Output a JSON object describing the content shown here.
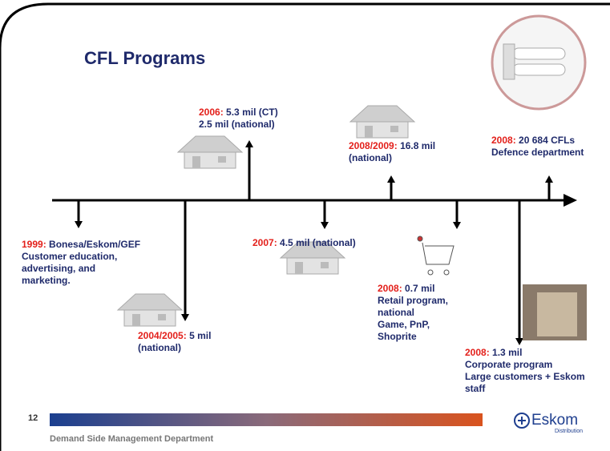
{
  "header": {
    "title": "CFL Programs"
  },
  "events": [
    {
      "year": "1999:",
      "lines": [
        "Bonesa/Eskom/GEF",
        "Customer education,",
        "advertising, and",
        "marketing."
      ]
    },
    {
      "year": "2004/2005:",
      "lines": [
        "5 mil",
        "(national)"
      ]
    },
    {
      "year": "2006:",
      "lines": [
        "5.3 mil (CT)",
        "2.5 mil (national)"
      ]
    },
    {
      "year": "2007:",
      "lines": [
        "4.5 mil (national)"
      ]
    },
    {
      "year": "2008/2009:",
      "lines": [
        "16.8 mil",
        "(national)"
      ]
    },
    {
      "year": "2008:",
      "lines": [
        "0.7 mil",
        "Retail program,",
        "national",
        "Game, PnP,",
        "Shoprite"
      ]
    },
    {
      "year": "2008:",
      "lines": [
        "1.3 mil",
        "Corporate program",
        "Large customers + Eskom",
        "staff"
      ]
    },
    {
      "year": "2008:",
      "lines": [
        "20 684 CFLs",
        "Defence department"
      ]
    }
  ],
  "footer": {
    "page_number": "12",
    "department": "Demand Side Management Department",
    "logo": "Eskom",
    "logo_sub": "Distribution"
  }
}
